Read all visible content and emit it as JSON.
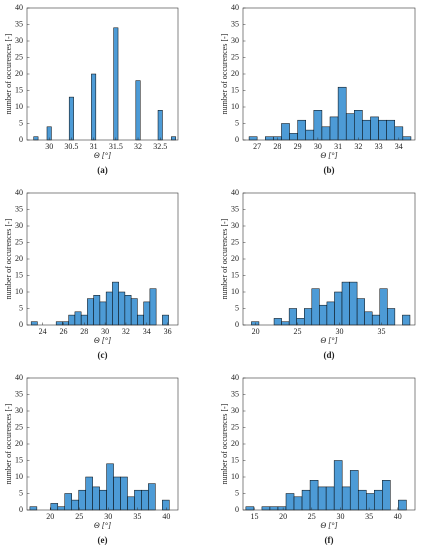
{
  "chart_data": [
    {
      "type": "histogram",
      "caption": "(a)",
      "x_label": "Θ [°]",
      "y_label": "number of occurences [-]",
      "color": "#4d9bd6",
      "bins": [
        29.65,
        29.75,
        29.85,
        29.95,
        30.05,
        30.15,
        30.25,
        30.35,
        30.45,
        30.55,
        30.65,
        30.75,
        30.85,
        30.95,
        31.05,
        31.15,
        31.25,
        31.35,
        31.45,
        31.55,
        31.65,
        31.75,
        31.85,
        31.95,
        32.05,
        32.15,
        32.25,
        32.35,
        32.45,
        32.55,
        32.65,
        32.75,
        32.85
      ],
      "counts": [
        1,
        0,
        0,
        4,
        0,
        0,
        0,
        0,
        13,
        0,
        0,
        0,
        0,
        20,
        0,
        0,
        0,
        0,
        34,
        0,
        0,
        0,
        0,
        18,
        0,
        0,
        0,
        0,
        9,
        0,
        0,
        1
      ],
      "xlim": [
        29.5,
        32.9
      ],
      "xticks": [
        30,
        30.5,
        31,
        31.5,
        32,
        32.5
      ],
      "ylim": [
        0,
        40
      ],
      "yticks": [
        0,
        5,
        10,
        15,
        20,
        25,
        30,
        35,
        40
      ]
    },
    {
      "type": "histogram",
      "caption": "(b)",
      "x_label": "Θ [°]",
      "y_label": "number of occurences [-]",
      "color": "#4d9bd6",
      "bins": [
        26.6,
        27.0,
        27.4,
        27.8,
        28.2,
        28.6,
        29.0,
        29.4,
        29.8,
        30.2,
        30.6,
        31.0,
        31.4,
        31.8,
        32.2,
        32.6,
        33.0,
        33.4,
        33.8,
        34.2,
        34.6
      ],
      "counts": [
        1,
        0,
        1,
        1,
        5,
        2,
        6,
        3,
        9,
        4,
        7,
        16,
        8,
        9,
        6,
        7,
        6,
        6,
        4,
        1
      ],
      "xlim": [
        26.3,
        34.8
      ],
      "xticks": [
        27,
        28,
        29,
        30,
        31,
        32,
        33,
        34
      ],
      "ylim": [
        0,
        40
      ],
      "yticks": [
        0,
        5,
        10,
        15,
        20,
        25,
        30,
        35,
        40
      ]
    },
    {
      "type": "histogram",
      "caption": "(c)",
      "x_label": "Θ [°]",
      "y_label": "number of occurences [-]",
      "color": "#4d9bd6",
      "bins": [
        22.9,
        23.5,
        24.1,
        24.7,
        25.3,
        25.9,
        26.5,
        27.1,
        27.7,
        28.3,
        28.9,
        29.5,
        30.1,
        30.7,
        31.3,
        31.9,
        32.5,
        33.1,
        33.7,
        34.3,
        34.9,
        35.5,
        36.1
      ],
      "counts": [
        1,
        0,
        0,
        0,
        1,
        1,
        3,
        4,
        3,
        8,
        9,
        7,
        10,
        13,
        10,
        9,
        8,
        3,
        7,
        11,
        0,
        3
      ],
      "xlim": [
        22.5,
        37
      ],
      "xticks": [
        24,
        26,
        28,
        30,
        32,
        34,
        36
      ],
      "ylim": [
        0,
        40
      ],
      "yticks": [
        0,
        5,
        10,
        15,
        20,
        25,
        30,
        35,
        40
      ]
    },
    {
      "type": "histogram",
      "caption": "(d)",
      "x_label": "Θ [°]",
      "y_label": "number of occurences [-]",
      "color": "#4d9bd6",
      "bins": [
        19.5,
        20.4,
        21.3,
        22.2,
        23.1,
        24.0,
        24.9,
        25.8,
        26.7,
        27.6,
        28.5,
        29.4,
        30.3,
        31.2,
        32.1,
        33.0,
        33.9,
        34.8,
        35.7,
        36.6,
        37.5,
        38.4
      ],
      "counts": [
        1,
        0,
        0,
        2,
        1,
        5,
        2,
        5,
        11,
        6,
        7,
        10,
        13,
        13,
        8,
        4,
        3,
        11,
        5,
        0,
        3
      ],
      "xlim": [
        18.5,
        39
      ],
      "xticks": [
        20,
        25,
        30,
        35
      ],
      "ylim": [
        0,
        40
      ],
      "yticks": [
        0,
        5,
        10,
        15,
        20,
        25,
        30,
        35,
        40
      ]
    },
    {
      "type": "histogram",
      "caption": "(e)",
      "x_label": "Θ [°]",
      "y_label": "number of occurences [-]",
      "color": "#4d9bd6",
      "bins": [
        16.5,
        17.7,
        18.9,
        20.1,
        21.3,
        22.5,
        23.7,
        24.9,
        26.1,
        27.3,
        28.5,
        29.7,
        30.9,
        32.1,
        33.3,
        34.5,
        35.7,
        36.9,
        38.1,
        39.3,
        40.5
      ],
      "counts": [
        1,
        0,
        0,
        2,
        1,
        5,
        3,
        6,
        10,
        7,
        6,
        14,
        10,
        10,
        4,
        6,
        6,
        8,
        0,
        3
      ],
      "xlim": [
        16,
        42
      ],
      "xticks": [
        20,
        25,
        30,
        35,
        40
      ],
      "ylim": [
        0,
        40
      ],
      "yticks": [
        0,
        5,
        10,
        15,
        20,
        25,
        30,
        35,
        40
      ]
    },
    {
      "type": "histogram",
      "caption": "(f)",
      "x_label": "Θ [°]",
      "y_label": "number of occurences [-]",
      "color": "#4d9bd6",
      "bins": [
        13.5,
        14.9,
        16.3,
        17.7,
        19.1,
        20.5,
        21.9,
        23.3,
        24.7,
        26.1,
        27.5,
        28.9,
        30.3,
        31.7,
        33.1,
        34.5,
        35.9,
        37.3,
        38.7,
        40.1,
        41.5
      ],
      "counts": [
        1,
        0,
        1,
        1,
        1,
        5,
        4,
        6,
        9,
        7,
        7,
        15,
        7,
        12,
        6,
        5,
        6,
        9,
        0,
        3
      ],
      "xlim": [
        13,
        43
      ],
      "xticks": [
        15,
        20,
        25,
        30,
        35,
        40
      ],
      "ylim": [
        0,
        40
      ],
      "yticks": [
        0,
        5,
        10,
        15,
        20,
        25,
        30,
        35,
        40
      ]
    }
  ]
}
